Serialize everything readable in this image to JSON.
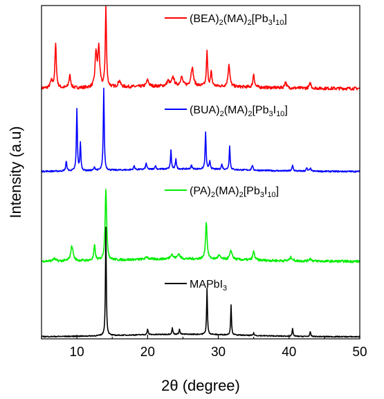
{
  "chart_data": {
    "type": "line",
    "xlabel": "2θ (degree)",
    "ylabel": "Intensity (a.u)",
    "xlim": [
      5,
      50
    ],
    "x_ticks": [
      10,
      20,
      30,
      40,
      50
    ],
    "y_ticks_labels": false,
    "grid": false,
    "legend_placement": "inline above each curve",
    "series": [
      {
        "name": "(BEA)2(MA)2[Pb3I10]",
        "legend_parts": [
          [
            "(BEA)",
            ""
          ],
          [
            "2",
            "sub"
          ],
          [
            "(MA)",
            ""
          ],
          [
            "2",
            "sub"
          ],
          [
            "[Pb",
            ""
          ],
          [
            "3",
            "sub"
          ],
          [
            "I",
            ""
          ],
          [
            "10",
            "sub"
          ],
          [
            "]",
            ""
          ]
        ],
        "color": "#ff0000",
        "peaks": [
          [
            6.4,
            0.11,
            0.2
          ],
          [
            7.0,
            0.7,
            0.12
          ],
          [
            9.0,
            0.2,
            0.15
          ],
          [
            12.7,
            0.55,
            0.15
          ],
          [
            13.1,
            0.62,
            0.15
          ],
          [
            14.1,
            1.28,
            0.1
          ],
          [
            16.0,
            0.1,
            0.2
          ],
          [
            20.0,
            0.1,
            0.2
          ],
          [
            22.9,
            0.08,
            0.2
          ],
          [
            23.6,
            0.14,
            0.2
          ],
          [
            24.8,
            0.14,
            0.2
          ],
          [
            26.3,
            0.3,
            0.2
          ],
          [
            28.4,
            0.55,
            0.1
          ],
          [
            29.0,
            0.22,
            0.12
          ],
          [
            31.5,
            0.36,
            0.15
          ],
          [
            35.0,
            0.22,
            0.12
          ],
          [
            39.5,
            0.1,
            0.15
          ],
          [
            43.0,
            0.08,
            0.15
          ]
        ],
        "noise": 0.025
      },
      {
        "name": "(BUA)2(MA)2[Pb3I10]",
        "legend_parts": [
          [
            "(BUA)",
            ""
          ],
          [
            "2",
            "sub"
          ],
          [
            "(MA)",
            ""
          ],
          [
            "2",
            "sub"
          ],
          [
            "[Pb",
            ""
          ],
          [
            "3",
            "sub"
          ],
          [
            "I",
            ""
          ],
          [
            "10",
            "sub"
          ],
          [
            "]",
            ""
          ]
        ],
        "color": "#0000ff",
        "peaks": [
          [
            8.5,
            0.15,
            0.1
          ],
          [
            10.0,
            1.0,
            0.08
          ],
          [
            10.5,
            0.44,
            0.08
          ],
          [
            12.5,
            0.05,
            0.12
          ],
          [
            13.8,
            1.32,
            0.08
          ],
          [
            18.1,
            0.06,
            0.1
          ],
          [
            19.8,
            0.1,
            0.1
          ],
          [
            21.1,
            0.06,
            0.1
          ],
          [
            23.3,
            0.3,
            0.08
          ],
          [
            24.0,
            0.17,
            0.08
          ],
          [
            26.2,
            0.06,
            0.1
          ],
          [
            28.2,
            0.6,
            0.08
          ],
          [
            28.8,
            0.12,
            0.1
          ],
          [
            30.5,
            0.08,
            0.1
          ],
          [
            31.6,
            0.38,
            0.08
          ],
          [
            34.8,
            0.08,
            0.1
          ],
          [
            40.5,
            0.09,
            0.1
          ],
          [
            42.5,
            0.05,
            0.1
          ],
          [
            43.0,
            0.05,
            0.1
          ]
        ],
        "noise": 0.012
      },
      {
        "name": "(PA)2(MA)2[Pb3I10]",
        "legend_parts": [
          [
            "(PA)",
            ""
          ],
          [
            "2",
            "sub"
          ],
          [
            "(MA)",
            ""
          ],
          [
            "2",
            "sub"
          ],
          [
            "[Pb",
            ""
          ],
          [
            "3",
            "sub"
          ],
          [
            "I",
            ""
          ],
          [
            "10",
            "sub"
          ],
          [
            "]",
            ""
          ]
        ],
        "color": "#00ee00",
        "peaks": [
          [
            6.8,
            0.04,
            0.2
          ],
          [
            9.3,
            0.24,
            0.2
          ],
          [
            12.5,
            0.24,
            0.12
          ],
          [
            14.1,
            1.15,
            0.13
          ],
          [
            19.9,
            0.04,
            0.2
          ],
          [
            23.4,
            0.08,
            0.2
          ],
          [
            24.4,
            0.08,
            0.2
          ],
          [
            28.3,
            0.6,
            0.13
          ],
          [
            30.1,
            0.06,
            0.2
          ],
          [
            31.8,
            0.14,
            0.2
          ],
          [
            35.0,
            0.14,
            0.15
          ],
          [
            40.3,
            0.06,
            0.2
          ],
          [
            43.0,
            0.04,
            0.2
          ]
        ],
        "noise": 0.02
      },
      {
        "name": "MAPbI3",
        "legend_parts": [
          [
            "MAPbI",
            ""
          ],
          [
            "3",
            "sub"
          ]
        ],
        "color": "#000000",
        "peaks": [
          [
            14.1,
            1.75,
            0.07
          ],
          [
            20.0,
            0.09,
            0.08
          ],
          [
            23.5,
            0.1,
            0.08
          ],
          [
            24.5,
            0.08,
            0.08
          ],
          [
            28.4,
            0.74,
            0.07
          ],
          [
            31.8,
            0.48,
            0.07
          ],
          [
            35.0,
            0.04,
            0.08
          ],
          [
            40.5,
            0.12,
            0.08
          ],
          [
            43.0,
            0.07,
            0.08
          ]
        ],
        "noise": 0.008
      }
    ]
  }
}
